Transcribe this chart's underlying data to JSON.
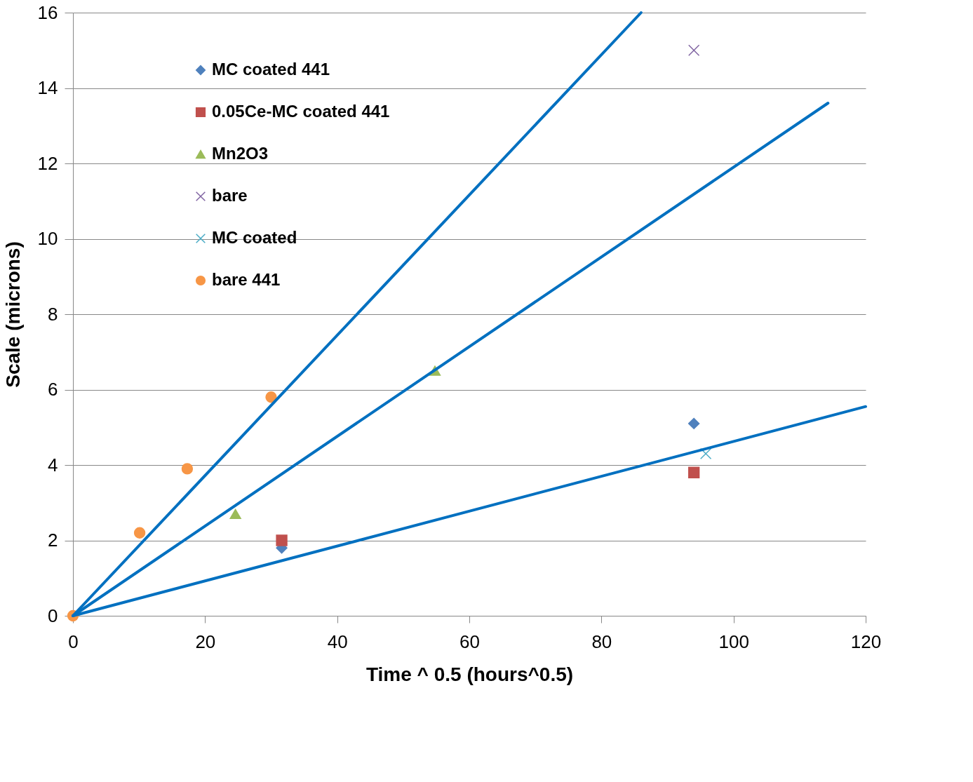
{
  "chart_data": {
    "type": "scatter",
    "xlabel": "Time ^ 0.5 (hours^0.5)",
    "ylabel": "Scale (microns)",
    "xlim": [
      0,
      120
    ],
    "xticks": [
      0,
      20,
      40,
      60,
      80,
      100,
      120
    ],
    "ylim": [
      0,
      16
    ],
    "yticks": [
      0,
      2,
      4,
      6,
      8,
      10,
      12,
      14,
      16
    ],
    "grid": "y",
    "legend": "top left",
    "series": [
      {
        "name": "MC coated 441",
        "color": "#4f81bd",
        "marker": "diamond",
        "x": [
          31.6,
          94.0
        ],
        "values": [
          1.8,
          5.1
        ]
      },
      {
        "name": "0.05Ce-MC coated 441",
        "color": "#c0504d",
        "marker": "square",
        "x": [
          31.6,
          94.0
        ],
        "values": [
          2.0,
          3.8
        ]
      },
      {
        "name": "Mn2O3",
        "color": "#9bbb59",
        "marker": "triangle",
        "x": [
          24.6,
          54.8
        ],
        "values": [
          2.7,
          6.5
        ]
      },
      {
        "name": "bare",
        "color": "#8064a2",
        "marker": "cross",
        "x": [
          94.0
        ],
        "values": [
          15.0
        ]
      },
      {
        "name": "MC coated",
        "color": "#4bacc6",
        "marker": "cross",
        "x": [
          95.8
        ],
        "values": [
          4.3
        ]
      },
      {
        "name": "bare 441",
        "color": "#f79646",
        "marker": "circle",
        "x": [
          0,
          10.1,
          17.3,
          30.0
        ],
        "values": [
          0,
          2.2,
          3.9,
          5.8
        ]
      },
      {
        "type": "line",
        "color": "#0070c0",
        "x": [
          0,
          86.0
        ],
        "values": [
          0,
          16.0
        ]
      },
      {
        "type": "line",
        "color": "#0070c0",
        "x": [
          0,
          114.3
        ],
        "values": [
          0,
          13.6
        ]
      },
      {
        "type": "line",
        "color": "#0070c0",
        "x": [
          0,
          120.0
        ],
        "values": [
          0,
          5.55
        ]
      }
    ]
  }
}
